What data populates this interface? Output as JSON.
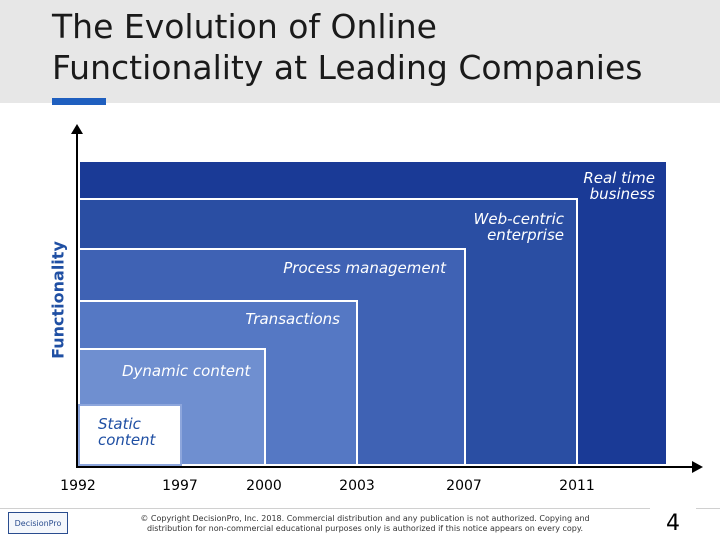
{
  "slide": {
    "title": "The Evolution of Online\nFunctionality at Leading Companies",
    "ylabel": "Functionality",
    "page_number": "4",
    "copyright": "© Copyright DecisionPro, Inc. 2018. Commercial distribution and any publication is not authorized. Copying and distribution for non-commercial educational purposes only is authorized if this notice appears on every copy.",
    "logo_text": "DecisionPro"
  },
  "stages": [
    {
      "label": "Static\ncontent",
      "year": "1992",
      "color": "#ffffff"
    },
    {
      "label": "Dynamic content",
      "year": "1997",
      "color": "#6f8fd0"
    },
    {
      "label": "Transactions",
      "year": "2000",
      "color": "#5578c4"
    },
    {
      "label": "Process management",
      "year": "2003",
      "color": "#3f62b4"
    },
    {
      "label": "Web-centric\nenterprise",
      "year": "2007",
      "color": "#2a4ea3"
    },
    {
      "label": "Real time\nbusiness",
      "year": "2011",
      "color": "#1a3a96"
    }
  ],
  "colors": {
    "title_accent": "#1f5fbf",
    "axis_label": "#1f4fa3"
  }
}
